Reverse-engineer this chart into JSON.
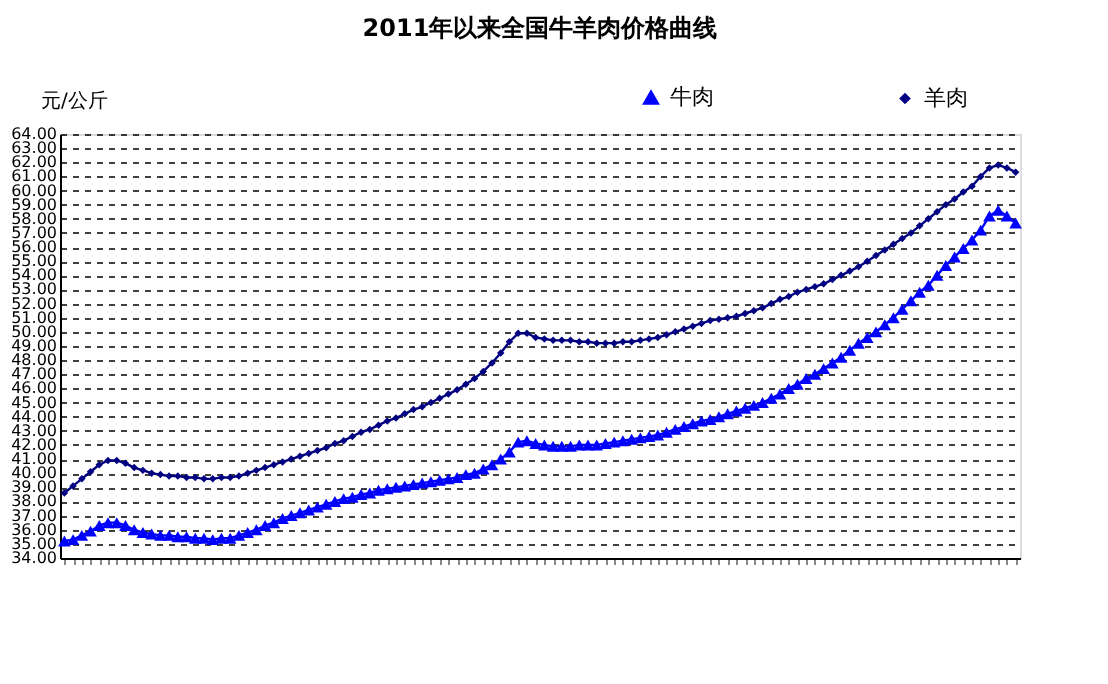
{
  "chart_data": {
    "type": "line",
    "title": "2011年以来全国牛羊肉价格曲线",
    "ylabel": "元/公斤",
    "categories": [
      null,
      null,
      null,
      null,
      null,
      null,
      null,
      null,
      null,
      null,
      null,
      null,
      null,
      null,
      null,
      null,
      null,
      null,
      null,
      null,
      null,
      null,
      null,
      null,
      null,
      null,
      null,
      null,
      null,
      null,
      null,
      null,
      null,
      null,
      null,
      null,
      null,
      null,
      null,
      null,
      null,
      null,
      null,
      null,
      null,
      null,
      null,
      null,
      null,
      null,
      null,
      null,
      null,
      null,
      null,
      null,
      null,
      null,
      null,
      null,
      null,
      null,
      null,
      null,
      null,
      null,
      null,
      null,
      null,
      null,
      null,
      null,
      null,
      null,
      null,
      null,
      null,
      null,
      null,
      null,
      null,
      null,
      null,
      null,
      null,
      null,
      null,
      null,
      null,
      null,
      null,
      null,
      null,
      null,
      null,
      null,
      null,
      null,
      null,
      null,
      null,
      null,
      null,
      null,
      null,
      null,
      null,
      null,
      null,
      null
    ],
    "series": [
      {
        "name": "牛肉",
        "color": "#0000ff",
        "marker": "triangle",
        "values": [
          35.2,
          35.3,
          35.6,
          35.9,
          36.3,
          36.5,
          36.5,
          36.3,
          36.0,
          35.8,
          35.7,
          35.6,
          35.6,
          35.5,
          35.5,
          35.4,
          35.4,
          35.3,
          35.4,
          35.4,
          35.6,
          35.8,
          36.0,
          36.3,
          36.5,
          36.8,
          37.0,
          37.2,
          37.4,
          37.6,
          37.8,
          38.0,
          38.2,
          38.3,
          38.5,
          38.6,
          38.8,
          38.9,
          39.0,
          39.1,
          39.2,
          39.3,
          39.4,
          39.5,
          39.6,
          39.7,
          39.9,
          40.0,
          40.3,
          40.6,
          41.0,
          41.5,
          42.2,
          42.3,
          42.1,
          42.0,
          41.9,
          41.9,
          41.9,
          42.0,
          42.0,
          42.0,
          42.1,
          42.2,
          42.3,
          42.4,
          42.5,
          42.6,
          42.7,
          42.9,
          43.1,
          43.3,
          43.5,
          43.7,
          43.8,
          44.0,
          44.2,
          44.4,
          44.6,
          44.8,
          45.0,
          45.3,
          45.6,
          46.0,
          46.3,
          46.7,
          47.0,
          47.4,
          47.8,
          48.2,
          48.7,
          49.2,
          49.6,
          50.0,
          50.5,
          51.0,
          51.6,
          52.2,
          52.8,
          53.3,
          54.0,
          54.7,
          55.3,
          55.9,
          56.5,
          57.2,
          58.2,
          58.6,
          58.2,
          57.7
        ]
      },
      {
        "name": "羊肉",
        "color": "#000080",
        "marker": "diamond",
        "values": [
          38.6,
          39.1,
          39.6,
          40.1,
          40.6,
          40.9,
          40.9,
          40.7,
          40.4,
          40.2,
          40.0,
          39.9,
          39.8,
          39.8,
          39.7,
          39.7,
          39.6,
          39.6,
          39.7,
          39.7,
          39.8,
          40.0,
          40.2,
          40.4,
          40.6,
          40.8,
          41.0,
          41.2,
          41.4,
          41.6,
          41.8,
          42.1,
          42.3,
          42.6,
          42.9,
          43.1,
          43.4,
          43.7,
          43.9,
          44.2,
          44.5,
          44.7,
          45.0,
          45.3,
          45.6,
          45.9,
          46.3,
          46.7,
          47.2,
          47.8,
          48.5,
          49.3,
          49.9,
          49.9,
          49.6,
          49.5,
          49.4,
          49.4,
          49.4,
          49.3,
          49.3,
          49.2,
          49.2,
          49.2,
          49.3,
          49.3,
          49.4,
          49.5,
          49.6,
          49.8,
          50.0,
          50.2,
          50.4,
          50.6,
          50.8,
          50.9,
          51.0,
          51.1,
          51.3,
          51.5,
          51.7,
          52.0,
          52.3,
          52.5,
          52.8,
          53.0,
          53.2,
          53.4,
          53.7,
          54.0,
          54.3,
          54.6,
          55.0,
          55.4,
          55.8,
          56.2,
          56.6,
          57.0,
          57.5,
          58.0,
          58.5,
          59.0,
          59.4,
          59.9,
          60.3,
          61.0,
          61.6,
          61.8,
          61.6,
          61.3
        ]
      }
    ],
    "ylim": [
      34,
      64
    ],
    "yticks": [
      {
        "value": 34,
        "label": "34.00"
      },
      {
        "value": 35,
        "label": "35.00"
      },
      {
        "value": 36,
        "label": "36.00"
      },
      {
        "value": 37,
        "label": "37.00"
      },
      {
        "value": 38,
        "label": "38.00"
      },
      {
        "value": 39,
        "label": "39.00"
      },
      {
        "value": 40,
        "label": "40.00"
      },
      {
        "value": 41,
        "label": "41.00"
      },
      {
        "value": 42,
        "label": "42.00"
      },
      {
        "value": 43,
        "label": "43.00"
      },
      {
        "value": 44,
        "label": "44.00"
      },
      {
        "value": 45,
        "label": "45.00"
      },
      {
        "value": 46,
        "label": "46.00"
      },
      {
        "value": 47,
        "label": "47.00"
      },
      {
        "value": 48,
        "label": "48.00"
      },
      {
        "value": 49,
        "label": "49.00"
      },
      {
        "value": 50,
        "label": "50.00"
      },
      {
        "value": 51,
        "label": "51.00"
      },
      {
        "value": 52,
        "label": "52.00"
      },
      {
        "value": 53,
        "label": "53.00"
      },
      {
        "value": 54,
        "label": "54.00"
      },
      {
        "value": 55,
        "label": "55.00"
      },
      {
        "value": 56,
        "label": "56.00"
      },
      {
        "value": 57,
        "label": "57.00"
      },
      {
        "value": 58,
        "label": "58.00"
      },
      {
        "value": 59,
        "label": "59.00"
      },
      {
        "value": 60,
        "label": "60.00"
      },
      {
        "value": 61,
        "label": "61.00"
      },
      {
        "value": 62,
        "label": "62.00"
      },
      {
        "value": 63,
        "label": "63.00"
      },
      {
        "value": 64,
        "label": "64.00"
      }
    ],
    "grid": "y",
    "legend": "top right",
    "line_style": "solid"
  }
}
